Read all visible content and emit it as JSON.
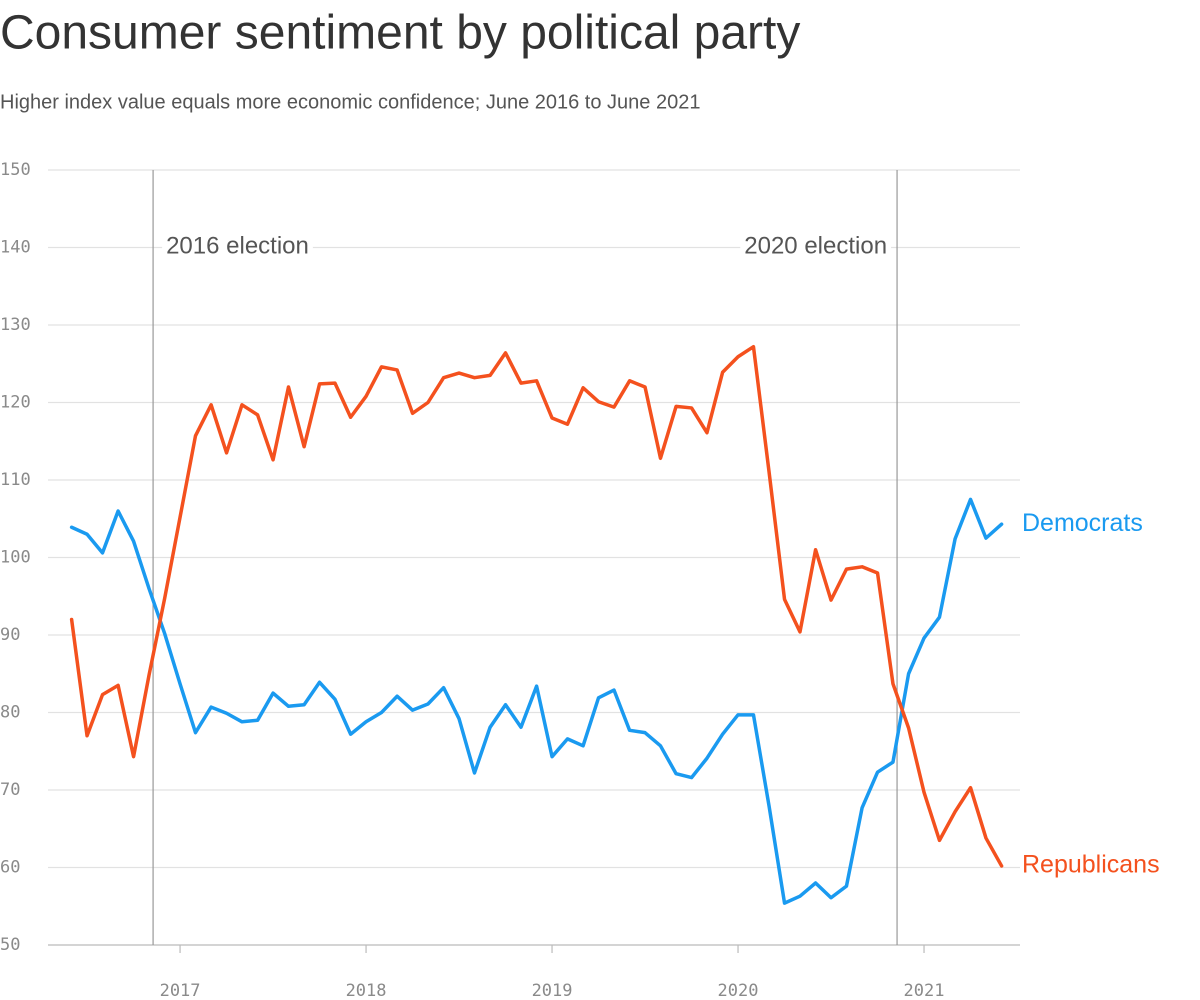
{
  "chart_data": {
    "type": "line",
    "title": "Consumer sentiment by political party",
    "subtitle": "Higher index value equals more economic confidence; June 2016 to June 2021",
    "x": [
      2016.417,
      2016.5,
      2016.583,
      2016.667,
      2016.75,
      2016.833,
      2016.917,
      2017.0,
      2017.083,
      2017.167,
      2017.25,
      2017.333,
      2017.417,
      2017.5,
      2017.583,
      2017.667,
      2017.75,
      2017.833,
      2017.917,
      2018.0,
      2018.083,
      2018.167,
      2018.25,
      2018.333,
      2018.417,
      2018.5,
      2018.583,
      2018.667,
      2018.75,
      2018.833,
      2018.917,
      2019.0,
      2019.083,
      2019.167,
      2019.25,
      2019.333,
      2019.417,
      2019.5,
      2019.583,
      2019.667,
      2019.75,
      2019.833,
      2019.917,
      2020.0,
      2020.083,
      2020.167,
      2020.25,
      2020.333,
      2020.417,
      2020.5,
      2020.583,
      2020.667,
      2020.75,
      2020.833,
      2020.917,
      2021.0,
      2021.083,
      2021.167,
      2021.25,
      2021.333,
      2021.417
    ],
    "series": [
      {
        "name": "Democrats",
        "color": "#1a9af0",
        "values": [
          103.9,
          103,
          100.6,
          106,
          102.1,
          96,
          90.2,
          83.7,
          77.4,
          80.7,
          79.9,
          78.8,
          79,
          82.5,
          80.8,
          81,
          83.9,
          81.7,
          77.2,
          78.8,
          80,
          82.1,
          80.3,
          81.1,
          83.2,
          79.2,
          72.2,
          78.1,
          81,
          78.1,
          83.4,
          74.3,
          76.6,
          75.7,
          81.9,
          82.9,
          77.7,
          77.4,
          75.7,
          72.1,
          71.6,
          74.1,
          77.2,
          79.7,
          79.7,
          67.9,
          55.4,
          56.3,
          58,
          56.1,
          57.6,
          67.7,
          72.3,
          73.6,
          85,
          89.6,
          92.3,
          102.4,
          107.5,
          102.5,
          104.3
        ]
      },
      {
        "name": "Republicans",
        "color": "#f4511e",
        "values": [
          92,
          77,
          82.3,
          83.5,
          74.3,
          84.8,
          94.7,
          105.2,
          115.7,
          119.7,
          113.5,
          119.7,
          118.4,
          112.6,
          122,
          114.3,
          122.4,
          122.5,
          118.1,
          120.8,
          124.6,
          124.2,
          118.6,
          120,
          123.2,
          123.8,
          123.2,
          123.5,
          126.4,
          122.5,
          122.8,
          118,
          117.2,
          121.9,
          120.1,
          119.4,
          122.8,
          122,
          112.8,
          119.5,
          119.3,
          116.1,
          123.9,
          125.9,
          127.2,
          111,
          94.6,
          90.4,
          101,
          94.5,
          98.5,
          98.8,
          98,
          83.7,
          78,
          69.7,
          63.5,
          67.2,
          70.3,
          63.8,
          60.2
        ]
      }
    ],
    "annotations": [
      {
        "text": "2016 election",
        "x": 2016.855
      },
      {
        "text": "2020 election",
        "x": 2020.855
      }
    ],
    "xlim": [
      2016.29,
      2021.516
    ],
    "xticks": [
      2017,
      2018,
      2019,
      2020,
      2021
    ],
    "ylim": [
      50,
      150
    ],
    "yticks": [
      50,
      60,
      70,
      80,
      90,
      100,
      110,
      120,
      130,
      140,
      150
    ],
    "grid": true
  }
}
